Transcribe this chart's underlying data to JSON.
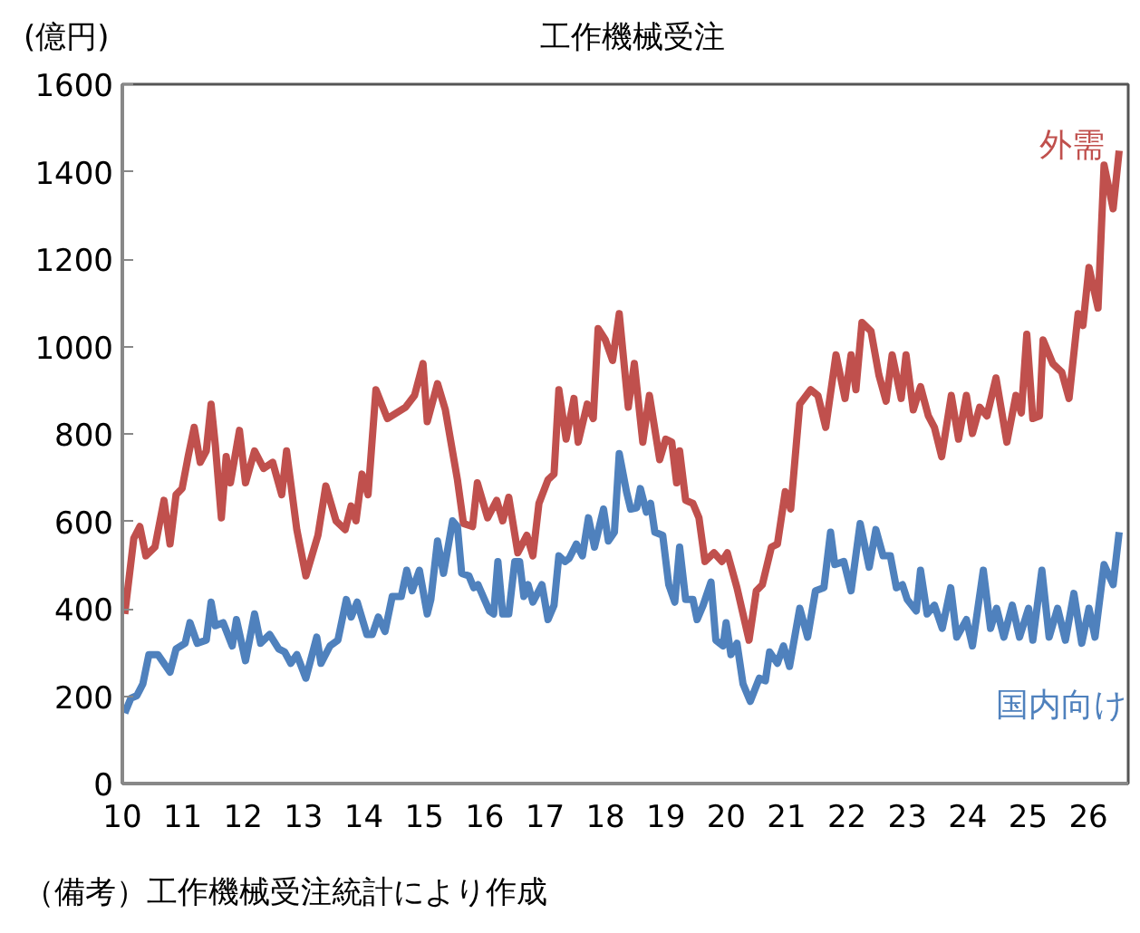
{
  "chart_data": {
    "type": "line",
    "title": "工作機械受注",
    "ylabel": "(億円)",
    "annotations": [
      "（備考）工作機械受注統計により作成"
    ],
    "xlim": [
      2010,
      2026.66
    ],
    "ylim": [
      0,
      1600
    ],
    "xticks": [
      {
        "value": 2010,
        "label": "10"
      },
      {
        "value": 2011,
        "label": "11"
      },
      {
        "value": 2012,
        "label": "12"
      },
      {
        "value": 2013,
        "label": "13"
      },
      {
        "value": 2014,
        "label": "14"
      },
      {
        "value": 2015,
        "label": "15"
      },
      {
        "value": 2016,
        "label": "16"
      },
      {
        "value": 2017,
        "label": "17"
      },
      {
        "value": 2018,
        "label": "18"
      },
      {
        "value": 2019,
        "label": "19"
      },
      {
        "value": 2020,
        "label": "20"
      },
      {
        "value": 2021,
        "label": "21"
      },
      {
        "value": 2022,
        "label": "22"
      },
      {
        "value": 2023,
        "label": "23"
      },
      {
        "value": 2024,
        "label": "24"
      },
      {
        "value": 2025,
        "label": "25"
      },
      {
        "value": 2026,
        "label": "26"
      }
    ],
    "yticks": [
      0,
      200,
      400,
      600,
      800,
      1000,
      1200,
      1400,
      1600
    ],
    "grid": false,
    "marker": "none",
    "line_style": "solid",
    "series": [
      {
        "name": "外需",
        "color": "#c0504d",
        "x": [
          2010.04,
          2010.19,
          2010.29,
          2010.39,
          2010.54,
          2010.69,
          2010.79,
          2010.89,
          2010.99,
          2011.09,
          2011.19,
          2011.29,
          2011.39,
          2011.47,
          2011.54,
          2011.64,
          2011.72,
          2011.79,
          2011.94,
          2012.04,
          2012.19,
          2012.34,
          2012.49,
          2012.64,
          2012.72,
          2012.89,
          2013.04,
          2013.24,
          2013.37,
          2013.54,
          2013.69,
          2013.79,
          2013.87,
          2013.97,
          2014.07,
          2014.2,
          2014.39,
          2014.69,
          2014.84,
          2014.98,
          2015.05,
          2015.22,
          2015.35,
          2015.55,
          2015.65,
          2015.8,
          2015.88,
          2016.05,
          2016.2,
          2016.3,
          2016.4,
          2016.55,
          2016.7,
          2016.8,
          2016.9,
          2017.05,
          2017.15,
          2017.23,
          2017.35,
          2017.48,
          2017.55,
          2017.7,
          2017.8,
          2017.88,
          2018.0,
          2018.12,
          2018.23,
          2018.38,
          2018.48,
          2018.62,
          2018.73,
          2018.9,
          2019.0,
          2019.1,
          2019.18,
          2019.23,
          2019.33,
          2019.45,
          2019.55,
          2019.65,
          2019.8,
          2019.93,
          2020.02,
          2020.18,
          2020.38,
          2020.5,
          2020.6,
          2020.75,
          2020.85,
          2020.98,
          2021.07,
          2021.22,
          2021.4,
          2021.52,
          2021.65,
          2021.82,
          2021.97,
          2022.07,
          2022.15,
          2022.25,
          2022.4,
          2022.53,
          2022.65,
          2022.75,
          2022.9,
          2022.98,
          2023.1,
          2023.22,
          2023.35,
          2023.45,
          2023.57,
          2023.73,
          2023.85,
          2023.98,
          2024.08,
          2024.2,
          2024.32,
          2024.47,
          2024.65,
          2024.8,
          2024.89,
          2024.98,
          2025.08,
          2025.19,
          2025.25,
          2025.41,
          2025.56,
          2025.68,
          2025.83,
          2025.91,
          2026.01,
          2026.16,
          2026.26,
          2026.41,
          2026.51
        ],
        "values": [
          388,
          561,
          588,
          521,
          541,
          648,
          548,
          661,
          675,
          748,
          815,
          735,
          761,
          868,
          775,
          608,
          748,
          688,
          808,
          688,
          761,
          721,
          735,
          661,
          761,
          581,
          475,
          568,
          681,
          601,
          581,
          635,
          601,
          708,
          661,
          901,
          835,
          861,
          888,
          961,
          828,
          915,
          855,
          695,
          595,
          588,
          688,
          608,
          648,
          601,
          655,
          528,
          568,
          521,
          641,
          695,
          708,
          901,
          788,
          881,
          781,
          868,
          835,
          1041,
          1015,
          968,
          1075,
          861,
          961,
          781,
          888,
          741,
          788,
          781,
          688,
          761,
          648,
          641,
          608,
          508,
          528,
          508,
          528,
          448,
          328,
          441,
          455,
          541,
          548,
          668,
          628,
          868,
          901,
          888,
          815,
          981,
          881,
          981,
          901,
          1055,
          1035,
          935,
          875,
          981,
          881,
          981,
          855,
          908,
          841,
          815,
          748,
          888,
          788,
          888,
          801,
          861,
          841,
          928,
          781,
          888,
          848,
          1028,
          835,
          841,
          1015,
          961,
          941,
          881,
          1075,
          1048,
          1181,
          1088,
          1415,
          1315,
          1448
        ]
      },
      {
        "name": "国内向け",
        "color": "#4f81bd",
        "x": [
          2010.04,
          2010.14,
          2010.24,
          2010.34,
          2010.44,
          2010.59,
          2010.79,
          2010.89,
          2011.04,
          2011.12,
          2011.24,
          2011.39,
          2011.47,
          2011.54,
          2011.67,
          2011.82,
          2011.89,
          2012.04,
          2012.19,
          2012.29,
          2012.44,
          2012.59,
          2012.69,
          2012.79,
          2012.89,
          2013.04,
          2013.22,
          2013.29,
          2013.44,
          2013.57,
          2013.71,
          2013.79,
          2013.89,
          2014.05,
          2014.14,
          2014.24,
          2014.35,
          2014.47,
          2014.62,
          2014.71,
          2014.8,
          2014.92,
          2015.05,
          2015.11,
          2015.22,
          2015.32,
          2015.47,
          2015.55,
          2015.62,
          2015.74,
          2015.82,
          2015.89,
          2016.08,
          2016.15,
          2016.22,
          2016.3,
          2016.4,
          2016.5,
          2016.58,
          2016.65,
          2016.72,
          2016.8,
          2016.95,
          2017.05,
          2017.15,
          2017.23,
          2017.33,
          2017.4,
          2017.52,
          2017.62,
          2017.72,
          2017.82,
          2017.97,
          2018.05,
          2018.15,
          2018.23,
          2018.35,
          2018.42,
          2018.52,
          2018.58,
          2018.68,
          2018.75,
          2018.82,
          2018.95,
          2019.05,
          2019.15,
          2019.23,
          2019.33,
          2019.45,
          2019.52,
          2019.62,
          2019.75,
          2019.83,
          2019.95,
          2020.0,
          2020.08,
          2020.18,
          2020.28,
          2020.4,
          2020.55,
          2020.65,
          2020.72,
          2020.85,
          2020.95,
          2021.05,
          2021.22,
          2021.35,
          2021.48,
          2021.62,
          2021.73,
          2021.8,
          2021.95,
          2022.07,
          2022.22,
          2022.37,
          2022.48,
          2022.6,
          2022.72,
          2022.82,
          2022.92,
          2023.0,
          2023.15,
          2023.22,
          2023.33,
          2023.45,
          2023.58,
          2023.72,
          2023.82,
          2023.98,
          2024.08,
          2024.26,
          2024.38,
          2024.48,
          2024.6,
          2024.74,
          2024.86,
          2025.01,
          2025.08,
          2025.23,
          2025.35,
          2025.49,
          2025.62,
          2025.76,
          2025.89,
          2026.01,
          2026.11,
          2026.26,
          2026.41,
          2026.51
        ],
        "values": [
          161,
          195,
          201,
          228,
          295,
          295,
          255,
          308,
          321,
          368,
          321,
          328,
          415,
          361,
          368,
          315,
          375,
          281,
          388,
          321,
          341,
          308,
          301,
          275,
          295,
          241,
          335,
          275,
          315,
          328,
          421,
          381,
          415,
          341,
          341,
          381,
          348,
          428,
          428,
          488,
          441,
          488,
          388,
          421,
          555,
          481,
          601,
          588,
          481,
          475,
          448,
          455,
          395,
          388,
          508,
          388,
          388,
          508,
          508,
          428,
          455,
          415,
          455,
          375,
          408,
          521,
          508,
          515,
          548,
          521,
          608,
          541,
          628,
          555,
          575,
          755,
          668,
          628,
          631,
          675,
          621,
          641,
          575,
          568,
          455,
          415,
          541,
          421,
          421,
          375,
          408,
          461,
          328,
          315,
          368,
          295,
          321,
          228,
          188,
          241,
          235,
          301,
          275,
          315,
          268,
          401,
          335,
          441,
          448,
          575,
          501,
          508,
          441,
          595,
          495,
          581,
          521,
          521,
          448,
          455,
          421,
          395,
          488,
          388,
          408,
          355,
          448,
          335,
          375,
          315,
          488,
          355,
          401,
          335,
          408,
          335,
          401,
          328,
          488,
          335,
          401,
          328,
          435,
          321,
          401,
          335,
          501,
          455,
          575
        ]
      }
    ]
  }
}
